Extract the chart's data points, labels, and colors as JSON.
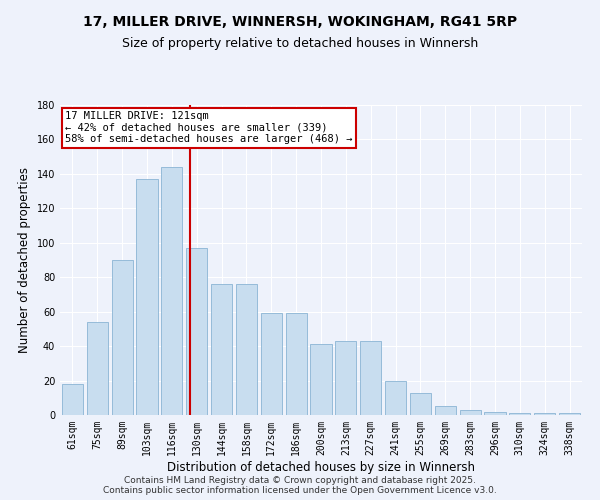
{
  "title": "17, MILLER DRIVE, WINNERSH, WOKINGHAM, RG41 5RP",
  "subtitle": "Size of property relative to detached houses in Winnersh",
  "xlabel": "Distribution of detached houses by size in Winnersh",
  "ylabel": "Number of detached properties",
  "bar_color": "#c8ddef",
  "bar_edge_color": "#8ab4d4",
  "categories": [
    "61sqm",
    "75sqm",
    "89sqm",
    "103sqm",
    "116sqm",
    "130sqm",
    "144sqm",
    "158sqm",
    "172sqm",
    "186sqm",
    "200sqm",
    "213sqm",
    "227sqm",
    "241sqm",
    "255sqm",
    "269sqm",
    "283sqm",
    "296sqm",
    "310sqm",
    "324sqm",
    "338sqm"
  ],
  "values": [
    18,
    54,
    90,
    137,
    144,
    97,
    76,
    76,
    59,
    59,
    41,
    43,
    43,
    20,
    13,
    5,
    3,
    2,
    1,
    1,
    1
  ],
  "vline_x": 4.72,
  "vline_color": "#cc0000",
  "annotation_text": "17 MILLER DRIVE: 121sqm\n← 42% of detached houses are smaller (339)\n58% of semi-detached houses are larger (468) →",
  "annotation_box_color": "#ffffff",
  "annotation_box_edge": "#cc0000",
  "ylim": [
    0,
    180
  ],
  "yticks": [
    0,
    20,
    40,
    60,
    80,
    100,
    120,
    140,
    160,
    180
  ],
  "footer": "Contains HM Land Registry data © Crown copyright and database right 2025.\nContains public sector information licensed under the Open Government Licence v3.0.",
  "bg_color": "#eef2fb",
  "grid_color": "#ffffff",
  "title_fontsize": 10,
  "subtitle_fontsize": 9,
  "axis_label_fontsize": 8.5,
  "tick_fontsize": 7,
  "annotation_fontsize": 7.5,
  "footer_fontsize": 6.5
}
